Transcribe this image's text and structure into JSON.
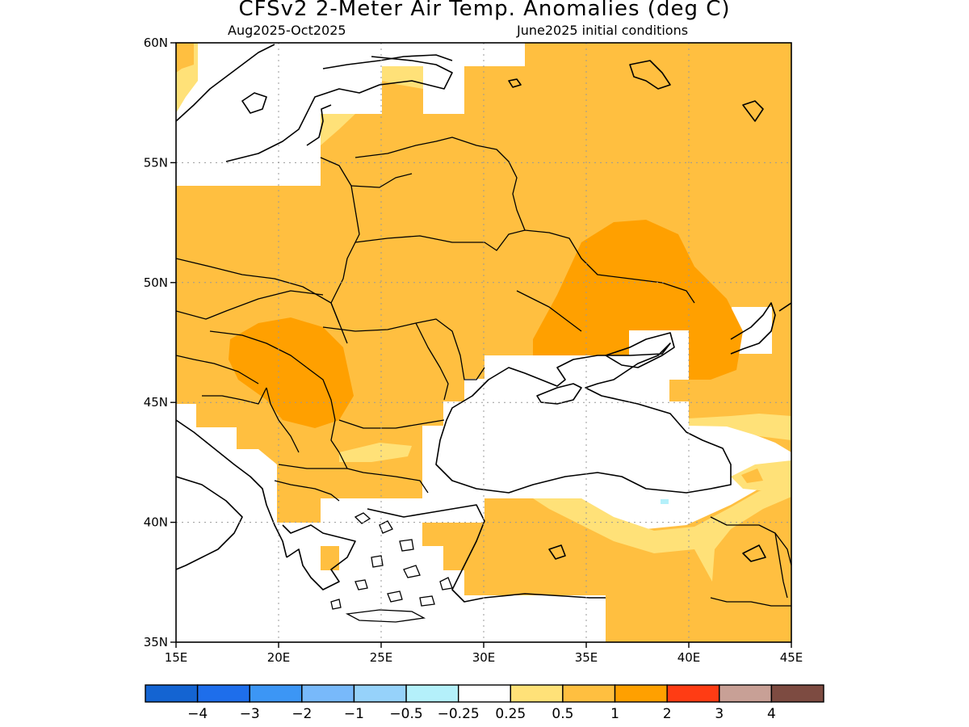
{
  "title": "CFSv2 2-Meter Air Temp. Anomalies (deg C)",
  "period": "Aug2025-Oct2025",
  "initial_conditions": "June2025 initial conditions",
  "map": {
    "lon_range": [
      15,
      45
    ],
    "lat_range": [
      35,
      60
    ],
    "lat_ticks": [
      {
        "value": 60,
        "label": "60N"
      },
      {
        "value": 55,
        "label": "55N"
      },
      {
        "value": 50,
        "label": "50N"
      },
      {
        "value": 45,
        "label": "45N"
      },
      {
        "value": 40,
        "label": "40N"
      },
      {
        "value": 35,
        "label": "35N"
      }
    ],
    "lon_ticks": [
      {
        "value": 15,
        "label": "15E"
      },
      {
        "value": 20,
        "label": "20E"
      },
      {
        "value": 25,
        "label": "25E"
      },
      {
        "value": 30,
        "label": "30E"
      },
      {
        "value": 35,
        "label": "35E"
      },
      {
        "value": 40,
        "label": "40E"
      },
      {
        "value": 45,
        "label": "45E"
      }
    ],
    "gridlines": true,
    "background_anomaly_color": "#ffbf40"
  },
  "colorbar": {
    "colors": [
      "#1464d2",
      "#1e6eeb",
      "#3c96f5",
      "#78b9fa",
      "#96d2fa",
      "#b4f0fa",
      "#ffffff",
      "#ffe178",
      "#ffbf40",
      "#ffa000",
      "#ff3c14",
      "#c8a096",
      "#7d4b41"
    ],
    "labels": [
      "−4",
      "−3",
      "−2",
      "−1",
      "−0.5",
      "−0.25",
      "0.25",
      "0.5",
      "1",
      "2",
      "3",
      "4"
    ]
  },
  "colors": {
    "white": "#ffffff",
    "light_yellow": "#ffe178",
    "light_orange": "#ffbf40",
    "orange": "#ffa000",
    "light_blue": "#b4f0fa",
    "coastline": "#000000"
  }
}
